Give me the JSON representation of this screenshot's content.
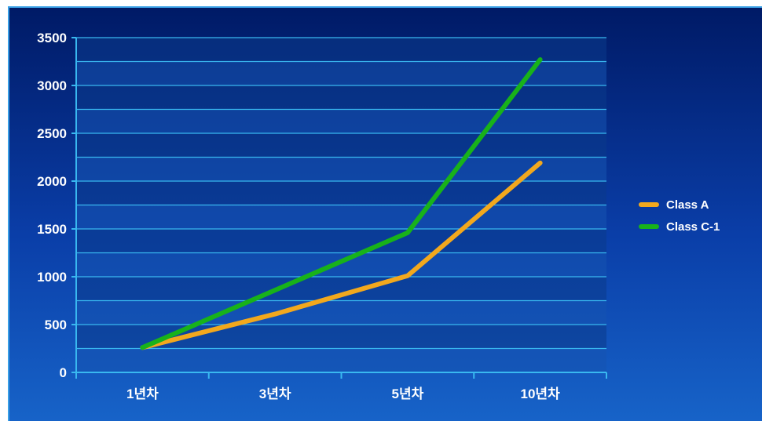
{
  "chart_data": {
    "type": "line",
    "categories": [
      "1년차",
      "3년차",
      "5년차",
      "10년차"
    ],
    "series": [
      {
        "name": "Class A",
        "values": [
          260,
          610,
          1010,
          2190
        ],
        "color": "#f2a81d"
      },
      {
        "name": "Class C-1",
        "values": [
          260,
          860,
          1460,
          3270
        ],
        "color": "#18b21a"
      }
    ],
    "ylim": [
      0,
      3500
    ],
    "yticks": [
      0,
      500,
      1000,
      1500,
      2000,
      2500,
      3000,
      3500
    ],
    "grid": true,
    "legend": "right",
    "title": "",
    "xlabel": "",
    "ylabel": ""
  },
  "colors": {
    "gridline": "#39b8f0",
    "axis": "#39b8f0",
    "band_dark": "#0b3a8a",
    "band_light": "#1553b0"
  }
}
